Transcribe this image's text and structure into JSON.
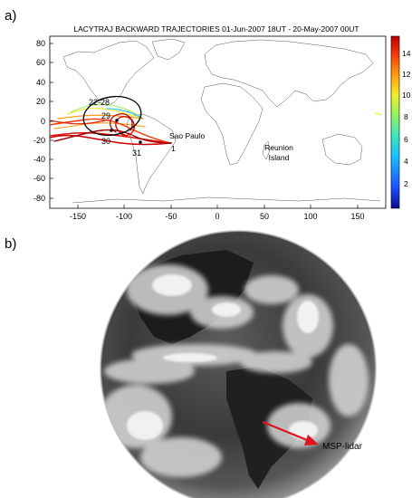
{
  "panels": {
    "a_label": "a)",
    "b_label": "b)"
  },
  "chart_data": {
    "type": "scatter",
    "title": "LACYTRAJ BACKWARD TRAJECTORIES 01-Jun-2007 18UT - 20-May-2007 00UT",
    "xlim": [
      -180,
      180
    ],
    "ylim": [
      -90,
      90
    ],
    "x_ticks": [
      "-150",
      "-100",
      "-50",
      "0",
      "50",
      "100",
      "150"
    ],
    "y_ticks": [
      "80",
      "60",
      "40",
      "20",
      "0",
      "-20",
      "-40",
      "-60",
      "-80"
    ],
    "colorbar": {
      "range": [
        1,
        15
      ],
      "ticks": [
        "14",
        "12",
        "10",
        "8",
        "6",
        "4",
        "2"
      ],
      "colors": [
        "#0a0a8c",
        "#1f4fff",
        "#19bfff",
        "#3de6c0",
        "#9bf25c",
        "#f2ee2c",
        "#ff9a12",
        "#f2380a",
        "#b40000"
      ]
    },
    "annotations": {
      "sao_paulo": "Sao Paulo",
      "start_day": "1",
      "reunion_1": "Reunion",
      "reunion_2": "Island",
      "day_22_28": "22-28",
      "day_29": "29",
      "day_30": "30",
      "day_31": "31"
    },
    "marked_points": [
      {
        "label": "29",
        "x": -105,
        "y": 5
      },
      {
        "label": "30",
        "x": -110,
        "y": -12
      },
      {
        "label": "31",
        "x": -78,
        "y": -20
      }
    ]
  },
  "satellite": {
    "marker_label": "MSP-lidar",
    "arrow_color": "#e0141e"
  }
}
